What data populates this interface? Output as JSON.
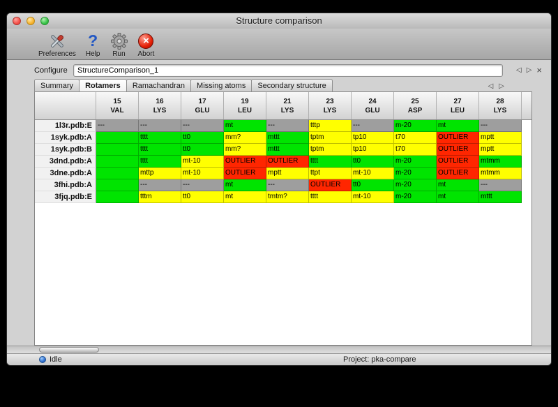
{
  "window": {
    "title": "Structure comparison"
  },
  "toolbar": {
    "items": [
      {
        "label": "Preferences",
        "icon": "tools-icon"
      },
      {
        "label": "Help",
        "icon": "help-icon"
      },
      {
        "label": "Run",
        "icon": "gear-icon"
      },
      {
        "label": "Abort",
        "icon": "abort-icon"
      }
    ]
  },
  "configure": {
    "label": "Configure",
    "value": "StructureComparison_1"
  },
  "tabs": [
    "Summary",
    "Rotamers",
    "Ramachandran",
    "Missing atoms",
    "Secondary structure"
  ],
  "active_tab": "Rotamers",
  "icons": {
    "prev": "◁",
    "next": "▷",
    "close": "×",
    "help_glyph": "?",
    "abort_glyph": "×"
  },
  "colors": {
    "ok": "#00e400",
    "warn": "#ffff00",
    "outlier": "#ff2600",
    "missing": "#9e9e9e"
  },
  "table": {
    "columns": [
      {
        "num": "15",
        "res": "VAL"
      },
      {
        "num": "16",
        "res": "LYS"
      },
      {
        "num": "17",
        "res": "GLU"
      },
      {
        "num": "19",
        "res": "LEU"
      },
      {
        "num": "21",
        "res": "LYS"
      },
      {
        "num": "23",
        "res": "LYS"
      },
      {
        "num": "24",
        "res": "GLU"
      },
      {
        "num": "25",
        "res": "ASP"
      },
      {
        "num": "27",
        "res": "LEU"
      },
      {
        "num": "28",
        "res": "LYS"
      }
    ],
    "rows": [
      {
        "label": "1l3r.pdb:E",
        "cells": [
          {
            "text": "---",
            "status": "missing"
          },
          {
            "text": "---",
            "status": "missing"
          },
          {
            "text": "---",
            "status": "missing"
          },
          {
            "text": "mt",
            "status": "ok"
          },
          {
            "text": "---",
            "status": "missing"
          },
          {
            "text": "tttp",
            "status": "warn"
          },
          {
            "text": "---",
            "status": "missing"
          },
          {
            "text": "m-20",
            "status": "ok"
          },
          {
            "text": "mt",
            "status": "ok"
          },
          {
            "text": "---",
            "status": "missing"
          }
        ]
      },
      {
        "label": "1syk.pdb:A",
        "cells": [
          {
            "text": "",
            "status": "ok"
          },
          {
            "text": "tttt",
            "status": "ok"
          },
          {
            "text": "tt0",
            "status": "ok"
          },
          {
            "text": "mm?",
            "status": "warn"
          },
          {
            "text": "mttt",
            "status": "ok"
          },
          {
            "text": "tptm",
            "status": "warn"
          },
          {
            "text": "tp10",
            "status": "warn"
          },
          {
            "text": "t70",
            "status": "warn"
          },
          {
            "text": "OUTLIER",
            "status": "outlier"
          },
          {
            "text": "mptt",
            "status": "warn"
          }
        ]
      },
      {
        "label": "1syk.pdb:B",
        "cells": [
          {
            "text": "",
            "status": "ok"
          },
          {
            "text": "tttt",
            "status": "ok"
          },
          {
            "text": "tt0",
            "status": "ok"
          },
          {
            "text": "mm?",
            "status": "warn"
          },
          {
            "text": "mttt",
            "status": "ok"
          },
          {
            "text": "tptm",
            "status": "warn"
          },
          {
            "text": "tp10",
            "status": "warn"
          },
          {
            "text": "t70",
            "status": "warn"
          },
          {
            "text": "OUTLIER",
            "status": "outlier"
          },
          {
            "text": "mptt",
            "status": "warn"
          }
        ]
      },
      {
        "label": "3dnd.pdb:A",
        "cells": [
          {
            "text": "",
            "status": "ok"
          },
          {
            "text": "tttt",
            "status": "ok"
          },
          {
            "text": "mt-10",
            "status": "warn"
          },
          {
            "text": "OUTLIER",
            "status": "outlier"
          },
          {
            "text": "OUTLIER",
            "status": "outlier"
          },
          {
            "text": "tttt",
            "status": "ok"
          },
          {
            "text": "tt0",
            "status": "ok"
          },
          {
            "text": "m-20",
            "status": "ok"
          },
          {
            "text": "OUTLIER",
            "status": "outlier"
          },
          {
            "text": "mtmm",
            "status": "ok"
          }
        ]
      },
      {
        "label": "3dne.pdb:A",
        "cells": [
          {
            "text": "",
            "status": "ok"
          },
          {
            "text": "mttp",
            "status": "warn"
          },
          {
            "text": "mt-10",
            "status": "warn"
          },
          {
            "text": "OUTLIER",
            "status": "outlier"
          },
          {
            "text": "mptt",
            "status": "warn"
          },
          {
            "text": "ttpt",
            "status": "warn"
          },
          {
            "text": "mt-10",
            "status": "warn"
          },
          {
            "text": "m-20",
            "status": "ok"
          },
          {
            "text": "OUTLIER",
            "status": "outlier"
          },
          {
            "text": "mtmm",
            "status": "warn"
          }
        ]
      },
      {
        "label": "3fhi.pdb:A",
        "cells": [
          {
            "text": "",
            "status": "ok"
          },
          {
            "text": "---",
            "status": "missing"
          },
          {
            "text": "---",
            "status": "missing"
          },
          {
            "text": "mt",
            "status": "ok"
          },
          {
            "text": "---",
            "status": "missing"
          },
          {
            "text": "OUTLIER",
            "status": "outlier"
          },
          {
            "text": "tt0",
            "status": "ok"
          },
          {
            "text": "m-20",
            "status": "ok"
          },
          {
            "text": "mt",
            "status": "ok"
          },
          {
            "text": "---",
            "status": "missing"
          }
        ]
      },
      {
        "label": "3fjq.pdb:E",
        "cells": [
          {
            "text": "",
            "status": "ok"
          },
          {
            "text": "tttm",
            "status": "warn"
          },
          {
            "text": "tt0",
            "status": "warn"
          },
          {
            "text": "mt",
            "status": "warn"
          },
          {
            "text": "tmtm?",
            "status": "warn"
          },
          {
            "text": "tttt",
            "status": "warn"
          },
          {
            "text": "mt-10",
            "status": "warn"
          },
          {
            "text": "m-20",
            "status": "ok"
          },
          {
            "text": "mt",
            "status": "ok"
          },
          {
            "text": "mttt",
            "status": "ok"
          }
        ]
      }
    ]
  },
  "status": {
    "state": "Idle",
    "project": "Project: pka-compare"
  }
}
